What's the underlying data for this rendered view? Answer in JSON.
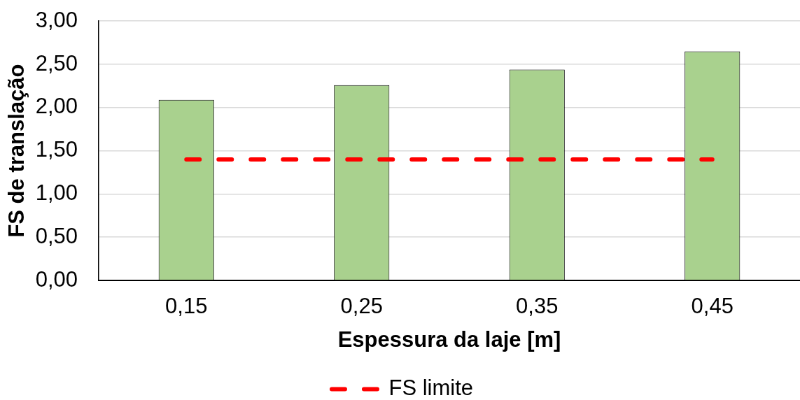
{
  "chart_data": {
    "type": "bar",
    "xlabel": "Espessura da laje [m]",
    "ylabel": "FS de translação",
    "categories": [
      "0,15",
      "0,25",
      "0,35",
      "0,45"
    ],
    "series": [
      {
        "color": "#a9d18e",
        "values": [
          2.09,
          2.26,
          2.44,
          2.65
        ]
      },
      {
        "name": "FS limite",
        "type": "line",
        "color": "#ff0000",
        "values": [
          1.4,
          1.4,
          1.4,
          1.4
        ],
        "line_style": "dashed",
        "marker": "none"
      }
    ],
    "ylim": [
      0,
      3
    ],
    "yticks": [
      {
        "value": 0,
        "label": "0,00"
      },
      {
        "value": 0.5,
        "label": "0,50"
      },
      {
        "value": 1,
        "label": "1,00"
      },
      {
        "value": 1.5,
        "label": "1,50"
      },
      {
        "value": 2,
        "label": "2,00"
      },
      {
        "value": 2.5,
        "label": "2,50"
      },
      {
        "value": 3,
        "label": "3,00"
      }
    ],
    "grid": "y",
    "legend": "bottom"
  }
}
